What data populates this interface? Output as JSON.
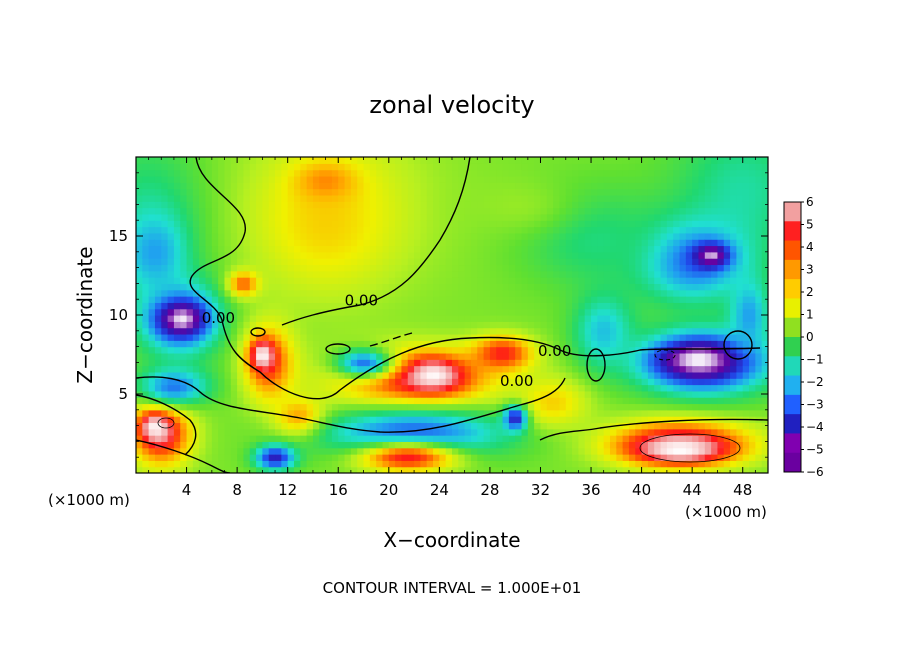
{
  "chart_data": {
    "type": "heatmap",
    "title": "zonal velocity",
    "xlabel": "X−coordinate",
    "ylabel": "Z−coordinate",
    "x_unit_left": "(×1000 m)",
    "x_unit_right": "(×1000 m)",
    "footnote": "CONTOUR INTERVAL = 1.000E+01",
    "xlim": [
      0,
      50
    ],
    "ylim": [
      0,
      20
    ],
    "x_ticks": [
      4,
      8,
      12,
      16,
      20,
      24,
      28,
      32,
      36,
      40,
      44,
      48
    ],
    "y_ticks": [
      5,
      10,
      15
    ],
    "colorbar": {
      "ticks": [
        "6",
        "5",
        "4",
        "3",
        "2",
        "1",
        "0",
        "−1",
        "−2",
        "−3",
        "−4",
        "−5",
        "−6"
      ],
      "colors": [
        "#f2a0a0",
        "#ff2020",
        "#ff5500",
        "#ff9900",
        "#ffcc00",
        "#e8f000",
        "#90e020",
        "#30d050",
        "#20d8b8",
        "#20b0f0",
        "#2060ff",
        "#2020c0",
        "#8000b0",
        "#6a00a0"
      ]
    },
    "contour_labels": [
      {
        "text": "0.00",
        "x": 16.5,
        "y": 10.6
      },
      {
        "text": "0.00",
        "x": 5.2,
        "y": 9.5
      },
      {
        "text": "0.00",
        "x": 31.8,
        "y": 7.4
      },
      {
        "text": "0.00",
        "x": 28.8,
        "y": 5.5
      }
    ],
    "blobs": [
      {
        "x": 44,
        "y": 13.5,
        "rx": 5.5,
        "ry": 3.2,
        "v": -4
      },
      {
        "x": 45.5,
        "y": 13.8,
        "rx": 1.8,
        "ry": 1.0,
        "v": -7
      },
      {
        "x": 45,
        "y": 7.0,
        "rx": 6.5,
        "ry": 2.6,
        "v": -4.5
      },
      {
        "x": 44.5,
        "y": 7.2,
        "rx": 4.5,
        "ry": 1.6,
        "v": -7
      },
      {
        "x": 3.5,
        "y": 9.8,
        "rx": 4.0,
        "ry": 3.0,
        "v": -4
      },
      {
        "x": 3.6,
        "y": 9.8,
        "rx": 2.4,
        "ry": 1.4,
        "v": -7
      },
      {
        "x": 48.5,
        "y": 10,
        "rx": 2.0,
        "ry": 3.0,
        "v": -3
      },
      {
        "x": 1.5,
        "y": 14,
        "rx": 3.0,
        "ry": 3.0,
        "v": -3
      },
      {
        "x": 22,
        "y": 6.0,
        "rx": 8.0,
        "ry": 2.4,
        "v": 5
      },
      {
        "x": 23.5,
        "y": 6.2,
        "rx": 3.0,
        "ry": 1.4,
        "v": 7
      },
      {
        "x": 29,
        "y": 7.6,
        "rx": 3.0,
        "ry": 1.4,
        "v": 5
      },
      {
        "x": 10.5,
        "y": 7.0,
        "rx": 2.5,
        "ry": 3.0,
        "v": 4.5
      },
      {
        "x": 10.0,
        "y": 7.5,
        "rx": 1.2,
        "ry": 1.2,
        "v": 7
      },
      {
        "x": 13,
        "y": 3.5,
        "rx": 2.5,
        "ry": 1.5,
        "v": 4
      },
      {
        "x": 2,
        "y": 2.5,
        "rx": 3.0,
        "ry": 2.5,
        "v": 5.5
      },
      {
        "x": 1.5,
        "y": 3.0,
        "rx": 1.5,
        "ry": 1.2,
        "v": 7
      },
      {
        "x": 43,
        "y": 2.0,
        "rx": 7.0,
        "ry": 1.8,
        "v": 5
      },
      {
        "x": 43,
        "y": 1.5,
        "rx": 5.0,
        "ry": 1.2,
        "v": 7
      },
      {
        "x": 22,
        "y": 2.5,
        "rx": 9.0,
        "ry": 2.0,
        "v": -4
      },
      {
        "x": 21.5,
        "y": 1.0,
        "rx": 5.0,
        "ry": 1.2,
        "v": 5
      },
      {
        "x": 33,
        "y": 4.5,
        "rx": 3.5,
        "ry": 2.0,
        "v": 2.5
      },
      {
        "x": 30,
        "y": 3.5,
        "rx": 1.2,
        "ry": 1.0,
        "v": -5
      },
      {
        "x": 15,
        "y": 16,
        "rx": 6.0,
        "ry": 5.0,
        "v": 2.5
      },
      {
        "x": 15,
        "y": 18.5,
        "rx": 3.0,
        "ry": 1.5,
        "v": 3.5
      },
      {
        "x": 8.5,
        "y": 12,
        "rx": 1.5,
        "ry": 1.0,
        "v": 4
      },
      {
        "x": 18,
        "y": 7.0,
        "rx": 3.0,
        "ry": 1.2,
        "v": -3.5
      },
      {
        "x": 11,
        "y": 1.0,
        "rx": 2.0,
        "ry": 1.0,
        "v": -5
      },
      {
        "x": 36,
        "y": 15,
        "rx": 7.0,
        "ry": 4.0,
        "v": -1.2
      },
      {
        "x": 30,
        "y": 17,
        "rx": 6.0,
        "ry": 2.5,
        "v": 0.6
      },
      {
        "x": 3,
        "y": 5.5,
        "rx": 3.5,
        "ry": 1.5,
        "v": -3.5
      },
      {
        "x": 37,
        "y": 9,
        "rx": 3.0,
        "ry": 3.0,
        "v": -2.5
      }
    ]
  }
}
